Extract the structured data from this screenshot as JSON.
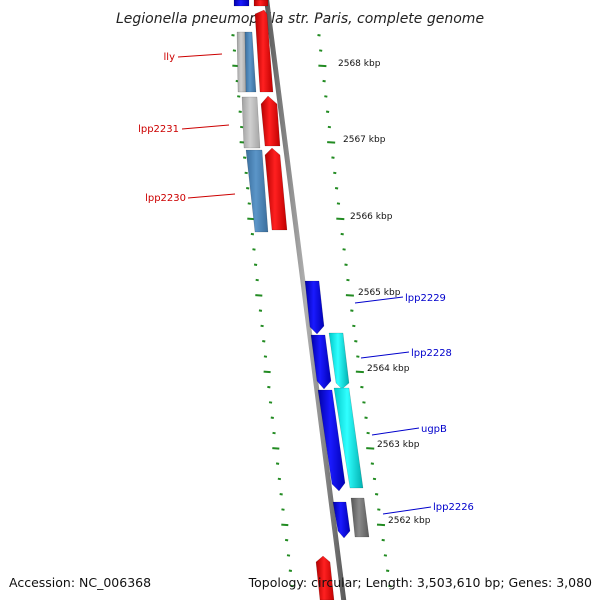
{
  "title": "Legionella pneumophila str. Paris, complete genome",
  "accession": "Accession: NC_006368",
  "summary": "Topology: circular; Length: 3,503,610 bp; Genes: 3,080",
  "colors": {
    "backbone": "#808080",
    "tick": "#228b22",
    "reverse_label": "#cc0000",
    "forward_label": "#0000cc",
    "red": "#ff0000",
    "blue": "#0000ee",
    "cyan": "#00e5e5",
    "steel": "#4a86be",
    "gray": "#b5b5b5",
    "darkgray": "#6e6e6e"
  },
  "scale_labels": [
    "2568 kbp",
    "2567 kbp",
    "2566 kbp",
    "2565 kbp",
    "2564 kbp",
    "2563 kbp",
    "2562 kbp"
  ],
  "gene_labels": [
    {
      "text": "lly",
      "strand": "reverse"
    },
    {
      "text": "lpp2231",
      "strand": "reverse"
    },
    {
      "text": "lpp2230",
      "strand": "reverse"
    },
    {
      "text": "lpp2229",
      "strand": "forward"
    },
    {
      "text": "lpp2228",
      "strand": "forward"
    },
    {
      "text": "ugpB",
      "strand": "forward"
    },
    {
      "text": "lpp2226",
      "strand": "forward"
    }
  ],
  "features": [
    {
      "name": "lly",
      "strand": "reverse",
      "color": "red"
    },
    {
      "name": "lly-cog",
      "strand": "reverse",
      "color": "steel"
    },
    {
      "name": "lly-cog2",
      "strand": "reverse",
      "color": "gray"
    },
    {
      "name": "lpp2231",
      "strand": "reverse",
      "color": "red"
    },
    {
      "name": "lpp2231-cog",
      "strand": "reverse",
      "color": "gray"
    },
    {
      "name": "lpp2230",
      "strand": "reverse",
      "color": "red"
    },
    {
      "name": "lpp2230-cog",
      "strand": "reverse",
      "color": "steel"
    },
    {
      "name": "lpp2229",
      "strand": "forward",
      "color": "blue"
    },
    {
      "name": "lpp2228",
      "strand": "forward",
      "color": "blue"
    },
    {
      "name": "lpp2228-cog",
      "strand": "forward",
      "color": "cyan"
    },
    {
      "name": "ugpB",
      "strand": "forward",
      "color": "blue"
    },
    {
      "name": "ugpB-cog",
      "strand": "forward",
      "color": "cyan"
    },
    {
      "name": "lpp2226",
      "strand": "forward",
      "color": "blue"
    },
    {
      "name": "lpp2226-cog",
      "strand": "forward",
      "color": "darkgray"
    },
    {
      "name": "bottom-red",
      "strand": "reverse",
      "color": "red"
    },
    {
      "name": "top-blue",
      "strand": "reverse",
      "color": "blue"
    }
  ]
}
